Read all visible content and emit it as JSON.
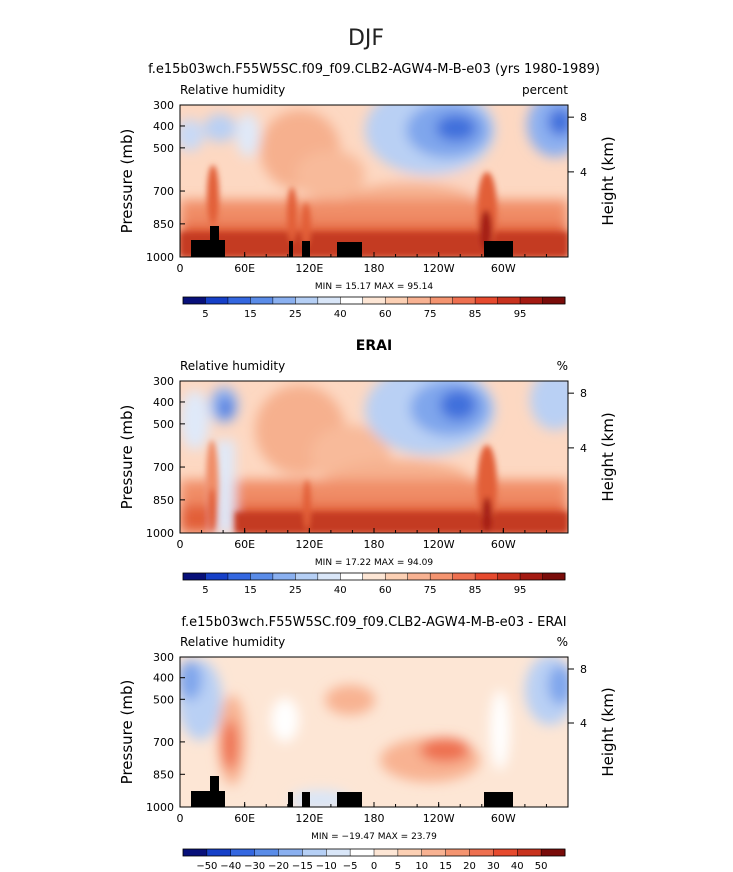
{
  "figure": {
    "title": "DJF"
  },
  "chart_data": [
    {
      "type": "heatmap",
      "title": "f.e15b03wch.F55W5SC.f09_f09.CLB2-AGW4-M-B-e03 (yrs 1980-1989)",
      "field_label": "Relative humidity",
      "units": "percent",
      "ylabel": "Pressure (mb)",
      "y2label": "Height (km)",
      "x_ticks": [
        "0",
        "60E",
        "120E",
        "180",
        "120W",
        "60W"
      ],
      "y_ticks": [
        "300",
        "400",
        "500",
        "700",
        "850",
        "1000"
      ],
      "y2_ticks": [
        "8",
        "4"
      ],
      "min_max": "MIN =   15.17   MAX =   95.14",
      "colorbar_labels": [
        "5",
        "15",
        "25",
        "40",
        "60",
        "75",
        "85",
        "95"
      ],
      "colorbar_colors": [
        "#08107a",
        "#1640c8",
        "#3467e0",
        "#5a8ce8",
        "#8ab0f0",
        "#b5cff5",
        "#d9e6f8",
        "#ffffff",
        "#fde6d5",
        "#fcd0b4",
        "#f8b292",
        "#f49470",
        "#ee7050",
        "#e64a2e",
        "#c8321e",
        "#a41a12",
        "#7a0c0a"
      ],
      "mask": true
    },
    {
      "type": "heatmap",
      "title": "ERAI",
      "field_label": "Relative humidity",
      "units": "%",
      "ylabel": "Pressure (mb)",
      "y2label": "Height (km)",
      "x_ticks": [
        "0",
        "60E",
        "120E",
        "180",
        "120W",
        "60W"
      ],
      "y_ticks": [
        "300",
        "400",
        "500",
        "700",
        "850",
        "1000"
      ],
      "y2_ticks": [
        "8",
        "4"
      ],
      "min_max": "MIN =   17.22   MAX =   94.09",
      "colorbar_labels": [
        "5",
        "15",
        "25",
        "40",
        "60",
        "75",
        "85",
        "95"
      ],
      "colorbar_colors": [
        "#08107a",
        "#1640c8",
        "#3467e0",
        "#5a8ce8",
        "#8ab0f0",
        "#b5cff5",
        "#d9e6f8",
        "#ffffff",
        "#fde6d5",
        "#fcd0b4",
        "#f8b292",
        "#f49470",
        "#ee7050",
        "#e64a2e",
        "#c8321e",
        "#a41a12",
        "#7a0c0a"
      ],
      "mask": false
    },
    {
      "type": "heatmap",
      "title": "f.e15b03wch.F55W5SC.f09_f09.CLB2-AGW4-M-B-e03 - ERAI",
      "field_label": "Relative humidity",
      "units": "%",
      "ylabel": "Pressure (mb)",
      "y2label": "Height (km)",
      "x_ticks": [
        "0",
        "60E",
        "120E",
        "180",
        "120W",
        "60W"
      ],
      "y_ticks": [
        "300",
        "400",
        "500",
        "700",
        "850",
        "1000"
      ],
      "y2_ticks": [
        "8",
        "4"
      ],
      "min_max": "MIN =  −19.47   MAX =   23.79",
      "colorbar_labels": [
        "−50",
        "−40",
        "−30",
        "−20",
        "−15",
        "−10",
        "−5",
        "0",
        "5",
        "10",
        "15",
        "20",
        "30",
        "40",
        "50"
      ],
      "colorbar_colors": [
        "#08107a",
        "#1640c8",
        "#3467e0",
        "#5a8ce8",
        "#8ab0f0",
        "#b5cff5",
        "#d9e6f8",
        "#ffffff",
        "#fde6d5",
        "#fcd0b4",
        "#f8b292",
        "#f49470",
        "#ee7050",
        "#e64a2e",
        "#c8321e",
        "#7a0c0a"
      ],
      "mask": true
    }
  ]
}
